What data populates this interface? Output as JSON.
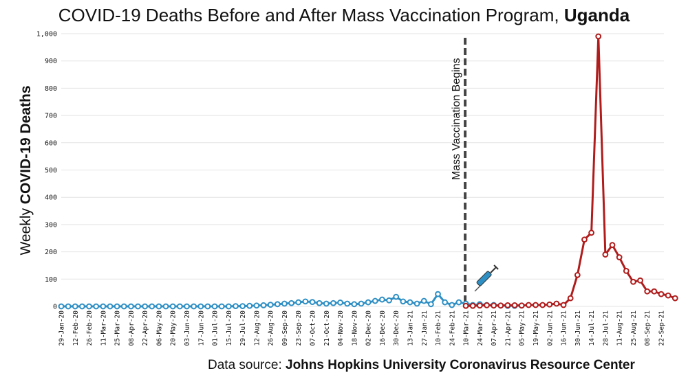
{
  "chart_data": {
    "type": "line",
    "title": "COVID-19 Deaths Before and After Mass Vaccination Program, ",
    "title_bold": "Uganda",
    "ylabel": "Weekly ",
    "ylabel_bold": "COVID-19 Deaths",
    "ylim": [
      0,
      1000
    ],
    "yticks": [
      0,
      100,
      200,
      300,
      400,
      500,
      600,
      700,
      800,
      900,
      1000
    ],
    "ytick_labels": [
      "0",
      "100",
      "200",
      "300",
      "400",
      "500",
      "600",
      "700",
      "800",
      "900",
      "1,000"
    ],
    "x_tick_labels": [
      "29-Jan-20",
      "12-Feb-20",
      "26-Feb-20",
      "11-Mar-20",
      "25-Mar-20",
      "08-Apr-20",
      "22-Apr-20",
      "06-May-20",
      "20-May-20",
      "03-Jun-20",
      "17-Jun-20",
      "01-Jul-20",
      "15-Jul-20",
      "29-Jul-20",
      "12-Aug-20",
      "26-Aug-20",
      "09-Sep-20",
      "23-Sep-20",
      "07-Oct-20",
      "21-Oct-20",
      "04-Nov-20",
      "18-Nov-20",
      "02-Dec-20",
      "16-Dec-20",
      "30-Dec-20",
      "13-Jan-21",
      "27-Jan-21",
      "10-Feb-21",
      "24-Feb-21",
      "10-Mar-21",
      "24-Mar-21",
      "07-Apr-21",
      "21-Apr-21",
      "05-May-21",
      "19-May-21",
      "02-Jun-21",
      "16-Jun-21",
      "30-Jun-21",
      "14-Jul-21",
      "28-Jul-21",
      "11-Aug-21",
      "25-Aug-21",
      "08-Sep-21",
      "22-Sep-21"
    ],
    "annotation": "Mass Vaccination Begins",
    "annotation_week_index": 58,
    "grid": true,
    "grid_orientation": "horizontal",
    "series": [
      {
        "period": "before",
        "color": "#2e8fc4",
        "values": [
          0,
          0,
          0,
          0,
          0,
          0,
          0,
          0,
          0,
          0,
          0,
          0,
          0,
          0,
          0,
          0,
          0,
          0,
          0,
          0,
          0,
          0,
          0,
          0,
          0,
          1,
          1,
          2,
          3,
          4,
          6,
          8,
          10,
          12,
          15,
          18,
          16,
          12,
          10,
          12,
          14,
          10,
          8,
          10,
          15,
          20,
          25,
          22,
          35,
          18,
          15,
          10,
          20,
          8,
          45,
          15,
          5,
          15,
          10,
          5,
          8,
          5,
          5,
          3,
          2,
          2,
          3
        ]
      },
      {
        "period": "after",
        "color": "#b01c1c",
        "start_index": 58,
        "values": [
          2,
          2,
          3,
          4,
          3,
          3,
          4,
          4,
          3,
          5,
          5,
          5,
          7,
          10,
          5,
          30,
          115,
          245,
          270,
          990,
          190,
          225,
          180,
          130,
          90,
          95,
          55,
          55,
          45,
          40,
          30
        ]
      }
    ]
  },
  "source": {
    "prefix": "Data source: ",
    "bold": "Johns Hopkins University Coronavirus Resource Center"
  },
  "icon": "syringe-icon"
}
